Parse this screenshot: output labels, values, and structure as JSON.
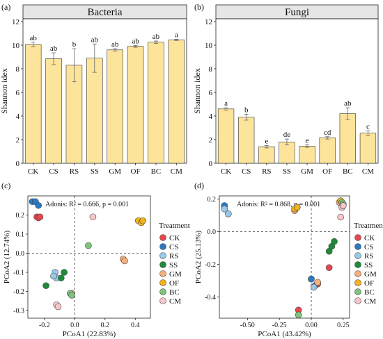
{
  "chart_data": [
    {
      "type": "bar",
      "panel_label": "(a)",
      "title": "Bacteria",
      "ylabel": "Shannon idex",
      "categories": [
        "CK",
        "CS",
        "RS",
        "SS",
        "GM",
        "OF",
        "BC",
        "CM"
      ],
      "values": [
        10.05,
        8.85,
        8.3,
        8.9,
        9.6,
        9.9,
        10.25,
        10.45
      ],
      "errors": [
        0.2,
        0.5,
        1.4,
        1.2,
        0.1,
        0.08,
        0.1,
        0.05
      ],
      "letters": [
        "ab",
        "ab",
        "b",
        "ab",
        "ab",
        "ab",
        "ab",
        "a"
      ],
      "ylim": [
        0,
        12
      ],
      "yticks": [
        0,
        2,
        4,
        6,
        8,
        10,
        12
      ],
      "bar_color": "#fce49a"
    },
    {
      "type": "bar",
      "panel_label": "(b)",
      "title": "Fungi",
      "ylabel": "Shannon idex",
      "categories": [
        "CK",
        "CS",
        "RS",
        "SS",
        "GM",
        "OF",
        "BC",
        "CM"
      ],
      "values": [
        4.6,
        3.9,
        1.4,
        1.8,
        1.45,
        2.15,
        4.2,
        2.55
      ],
      "errors": [
        0.1,
        0.25,
        0.1,
        0.25,
        0.1,
        0.1,
        0.5,
        0.2
      ],
      "letters": [
        "a",
        "b",
        "e",
        "de",
        "e",
        "cd",
        "ab",
        "c"
      ],
      "ylim": [
        0,
        12
      ],
      "yticks": [
        0,
        2,
        4,
        6,
        8,
        10,
        12
      ],
      "bar_color": "#fce49a"
    },
    {
      "type": "scatter",
      "panel_label": "(c)",
      "annotation": "Adonis: R² = 0.666, p = 0.001",
      "xlabel": "PCoA1 (22.83%)",
      "ylabel": "PCoA2 (12.74%)",
      "xlim": [
        -0.31,
        0.5
      ],
      "ylim": [
        -0.34,
        0.3
      ],
      "xticks": [
        -0.2,
        0.0,
        0.2,
        0.4
      ],
      "xtick_labels": [
        "-0.2",
        "0.0",
        "0.2",
        "0.4"
      ],
      "yticks": [
        -0.3,
        -0.2,
        -0.1,
        0.0,
        0.1,
        0.2
      ],
      "ytick_labels": [
        "-0.3",
        "-0.2",
        "-0.1",
        "0.0",
        "0.1",
        "0.2"
      ],
      "series": [
        {
          "name": "CK",
          "points": [
            [
              -0.25,
              0.19
            ],
            [
              -0.24,
              0.185
            ],
            [
              -0.23,
              0.19
            ]
          ]
        },
        {
          "name": "CS",
          "points": [
            [
              -0.28,
              0.27
            ],
            [
              -0.26,
              0.27
            ],
            [
              -0.24,
              0.25
            ]
          ]
        },
        {
          "name": "RS",
          "points": [
            [
              -0.13,
              -0.1
            ],
            [
              -0.12,
              -0.13
            ],
            [
              -0.14,
              -0.12
            ]
          ]
        },
        {
          "name": "SS",
          "points": [
            [
              -0.19,
              -0.17
            ],
            [
              -0.07,
              -0.1
            ],
            [
              -0.09,
              -0.13
            ]
          ]
        },
        {
          "name": "GM",
          "points": [
            [
              0.32,
              -0.03
            ],
            [
              0.33,
              -0.04
            ],
            [
              -0.02,
              -0.21
            ]
          ]
        },
        {
          "name": "OF",
          "points": [
            [
              0.42,
              0.17
            ],
            [
              0.44,
              0.16
            ],
            [
              0.45,
              0.17
            ]
          ]
        },
        {
          "name": "BC",
          "points": [
            [
              0.09,
              0.04
            ],
            [
              -0.03,
              -0.21
            ],
            [
              -0.02,
              -0.22
            ]
          ]
        },
        {
          "name": "CM",
          "points": [
            [
              0.12,
              0.19
            ],
            [
              -0.12,
              -0.27
            ],
            [
              -0.11,
              -0.28
            ]
          ]
        }
      ]
    },
    {
      "type": "scatter",
      "panel_label": "(d)",
      "annotation": "Adonis: R² = 0.868, p = 0.001",
      "xlabel": "PCoA1 (43.42%)",
      "ylabel": "PCoA2 (25.13%)",
      "xlim": [
        -0.72,
        0.3
      ],
      "ylim": [
        -0.53,
        0.22
      ],
      "xticks": [
        -0.5,
        -0.25,
        0.0,
        0.25
      ],
      "xtick_labels": [
        "-0.50",
        "-0.25",
        "0.00",
        "0.25"
      ],
      "yticks": [
        -0.4,
        -0.2,
        0.0,
        0.2
      ],
      "ytick_labels": [
        "-0.4",
        "-0.2",
        "0.0",
        "0.2"
      ],
      "series": [
        {
          "name": "CK",
          "points": [
            [
              -0.1,
              -0.48
            ],
            [
              0.05,
              -0.32
            ],
            [
              0.14,
              -0.22
            ]
          ]
        },
        {
          "name": "CS",
          "points": [
            [
              -0.68,
              0.16
            ],
            [
              0.0,
              -0.29
            ],
            [
              0.03,
              -0.33
            ]
          ]
        },
        {
          "name": "RS",
          "points": [
            [
              -0.68,
              0.14
            ],
            [
              -0.65,
              0.11
            ],
            [
              0.02,
              -0.34
            ]
          ]
        },
        {
          "name": "SS",
          "points": [
            [
              0.14,
              -0.12
            ],
            [
              0.16,
              -0.09
            ],
            [
              0.18,
              -0.06
            ]
          ]
        },
        {
          "name": "GM",
          "points": [
            [
              0.05,
              -0.31
            ],
            [
              0.22,
              0.18
            ],
            [
              -0.13,
              0.13
            ]
          ]
        },
        {
          "name": "OF",
          "points": [
            [
              -0.13,
              0.14
            ],
            [
              -0.11,
              0.15
            ],
            [
              0.23,
              0.19
            ]
          ]
        },
        {
          "name": "BC",
          "points": [
            [
              -0.1,
              -0.51
            ],
            [
              0.24,
              0.18
            ],
            [
              0.25,
              0.17
            ]
          ]
        },
        {
          "name": "CM",
          "points": [
            [
              0.23,
              0.09
            ],
            [
              0.24,
              0.15
            ],
            [
              0.25,
              0.16
            ]
          ]
        }
      ]
    }
  ],
  "legend_title": "Treatment",
  "legend": [
    {
      "name": "CK",
      "color": "#e8474d"
    },
    {
      "name": "CS",
      "color": "#2b79c2"
    },
    {
      "name": "RS",
      "color": "#9ac8e8"
    },
    {
      "name": "SS",
      "color": "#1f8a3a"
    },
    {
      "name": "GM",
      "color": "#f5b07e"
    },
    {
      "name": "OF",
      "color": "#f2b418"
    },
    {
      "name": "BC",
      "color": "#7ec47e"
    },
    {
      "name": "CM",
      "color": "#f6c6c9"
    }
  ]
}
